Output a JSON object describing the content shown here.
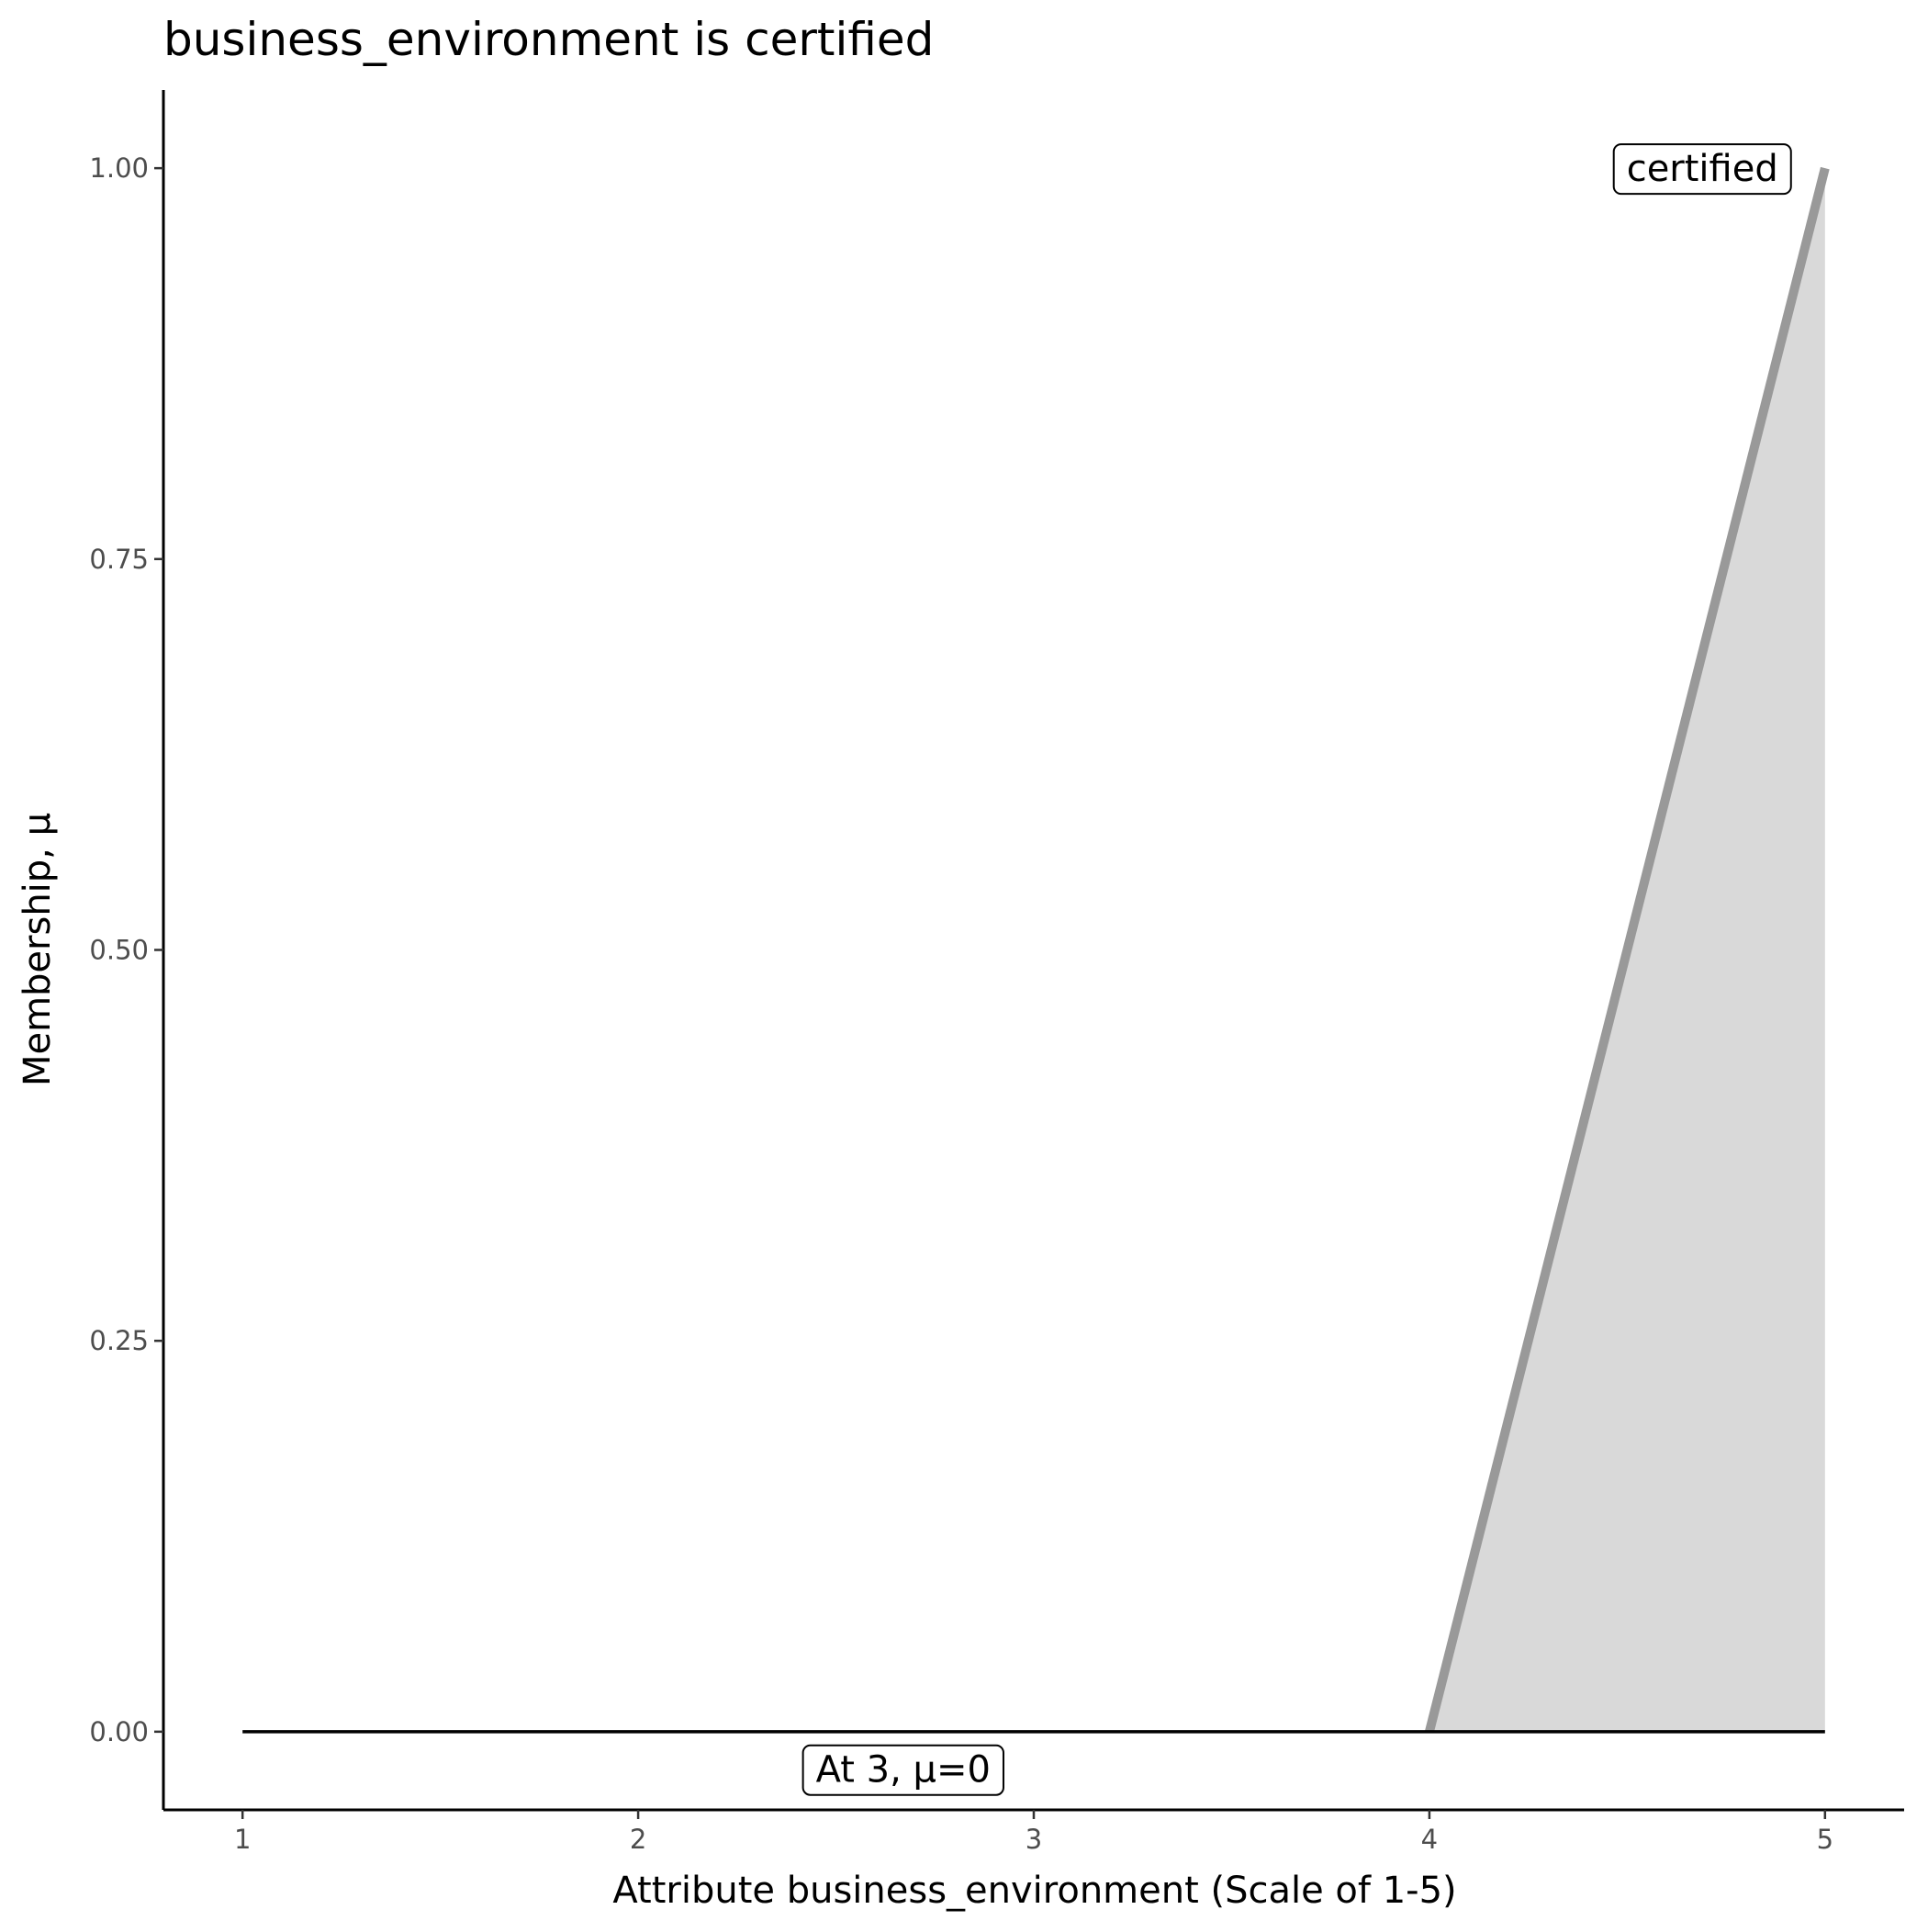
{
  "chart_data": {
    "type": "area",
    "title": "business_environment is certified",
    "xlabel": "Attribute business_environment (Scale of 1-5)",
    "ylabel": "Membership, μ",
    "xlim": [
      0.8,
      5.2
    ],
    "ylim": [
      -0.05,
      1.05
    ],
    "xticks": [
      1,
      2,
      3,
      4,
      5
    ],
    "xtick_labels": [
      "1",
      "2",
      "3",
      "4",
      "5"
    ],
    "yticks": [
      0,
      0.25,
      0.5,
      0.75,
      1
    ],
    "ytick_labels": [
      "0.00",
      "0.25",
      "0.50",
      "0.75",
      "1.00"
    ],
    "grid": false,
    "series": [
      {
        "x": [
          4,
          5
        ],
        "y": [
          0,
          1
        ],
        "style": "line",
        "color": "#999999",
        "fill": "#d9d9d9"
      },
      {
        "x": [
          1,
          5
        ],
        "y": [
          0,
          0
        ],
        "style": "line",
        "color": "#000000"
      }
    ],
    "annotations": [
      {
        "text": "certified",
        "x": 4.69,
        "y": 1.0
      },
      {
        "text": "At 3, μ=0",
        "x": 2.67,
        "y": -0.024
      }
    ]
  }
}
